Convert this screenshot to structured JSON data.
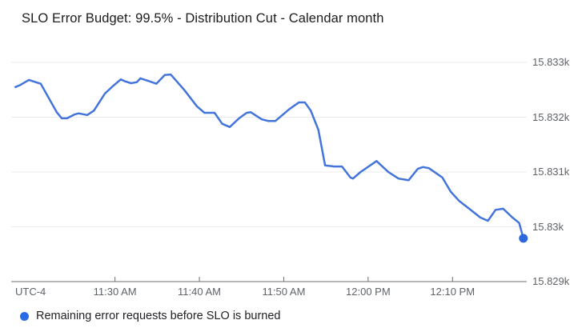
{
  "title": "SLO Error Budget: 99.5% - Distribution Cut - Calendar month",
  "legend": {
    "label": "Remaining error requests before SLO is burned",
    "dot_color": "#2a6be8"
  },
  "colors": {
    "background": "#ffffff",
    "line": "#4374dc",
    "end_dot": "#2c67e0",
    "grid": "#ebebeb",
    "axis": "#6e6e6e",
    "tick_label": "#5f6368",
    "title_text": "#1c1c1c"
  },
  "chart_data": {
    "type": "line",
    "title": "SLO Error Budget: 99.5% - Distribution Cut - Calendar month",
    "grid": true,
    "legend_position": "bottom-left",
    "x_axis": {
      "timezone_label": "UTC-4",
      "unit": "minutes after 11:00 AM (UTC-4)",
      "tick_minutes": [
        30,
        40,
        50,
        60,
        70
      ],
      "tick_labels": [
        "11:30 AM",
        "11:40 AM",
        "11:50 AM",
        "12:00 PM",
        "12:10 PM"
      ],
      "range_minutes": [
        17.7,
        78.8
      ]
    },
    "y_axis": {
      "tick_values": [
        15833,
        15832,
        15831,
        15830,
        15829
      ],
      "tick_labels": [
        "15.833k",
        "15.832k",
        "15.831k",
        "15.83k",
        "15.829k"
      ],
      "range": [
        15829,
        15833
      ]
    },
    "series": [
      {
        "name": "Remaining error requests before SLO is burned",
        "color": "#4374dc",
        "end_marker": true,
        "points": [
          [
            18.2,
            15832.55
          ],
          [
            18.8,
            15832.59
          ],
          [
            19.8,
            15832.68
          ],
          [
            20.6,
            15832.64
          ],
          [
            21.2,
            15832.61
          ],
          [
            23.1,
            15832.09
          ],
          [
            23.7,
            15831.98
          ],
          [
            24.3,
            15831.98
          ],
          [
            25.2,
            15832.05
          ],
          [
            25.7,
            15832.07
          ],
          [
            26.7,
            15832.04
          ],
          [
            27.5,
            15832.12
          ],
          [
            28.8,
            15832.43
          ],
          [
            29.7,
            15832.56
          ],
          [
            30.7,
            15832.69
          ],
          [
            31.1,
            15832.66
          ],
          [
            31.9,
            15832.62
          ],
          [
            32.6,
            15832.64
          ],
          [
            33.0,
            15832.71
          ],
          [
            34.0,
            15832.66
          ],
          [
            34.9,
            15832.61
          ],
          [
            35.9,
            15832.77
          ],
          [
            36.6,
            15832.78
          ],
          [
            38.2,
            15832.5
          ],
          [
            39.7,
            15832.2
          ],
          [
            40.6,
            15832.08
          ],
          [
            41.8,
            15832.08
          ],
          [
            42.7,
            15831.88
          ],
          [
            43.6,
            15831.82
          ],
          [
            44.7,
            15831.98
          ],
          [
            45.6,
            15832.08
          ],
          [
            46.1,
            15832.09
          ],
          [
            47.4,
            15831.96
          ],
          [
            48.2,
            15831.93
          ],
          [
            49.0,
            15831.93
          ],
          [
            50.6,
            15832.14
          ],
          [
            51.8,
            15832.27
          ],
          [
            52.5,
            15832.27
          ],
          [
            53.2,
            15832.12
          ],
          [
            54.1,
            15831.77
          ],
          [
            54.9,
            15831.12
          ],
          [
            56.0,
            15831.1
          ],
          [
            56.9,
            15831.1
          ],
          [
            57.9,
            15830.9
          ],
          [
            58.2,
            15830.88
          ],
          [
            59.1,
            15831.0
          ],
          [
            61.0,
            15831.2
          ],
          [
            62.4,
            15831.0
          ],
          [
            63.6,
            15830.88
          ],
          [
            64.8,
            15830.85
          ],
          [
            65.9,
            15831.06
          ],
          [
            66.5,
            15831.09
          ],
          [
            67.2,
            15831.07
          ],
          [
            68.8,
            15830.9
          ],
          [
            69.8,
            15830.64
          ],
          [
            70.8,
            15830.47
          ],
          [
            71.9,
            15830.34
          ],
          [
            73.3,
            15830.17
          ],
          [
            74.2,
            15830.11
          ],
          [
            75.1,
            15830.31
          ],
          [
            76.0,
            15830.33
          ],
          [
            77.1,
            15830.17
          ],
          [
            77.9,
            15830.07
          ],
          [
            78.4,
            15829.79
          ]
        ]
      }
    ]
  }
}
